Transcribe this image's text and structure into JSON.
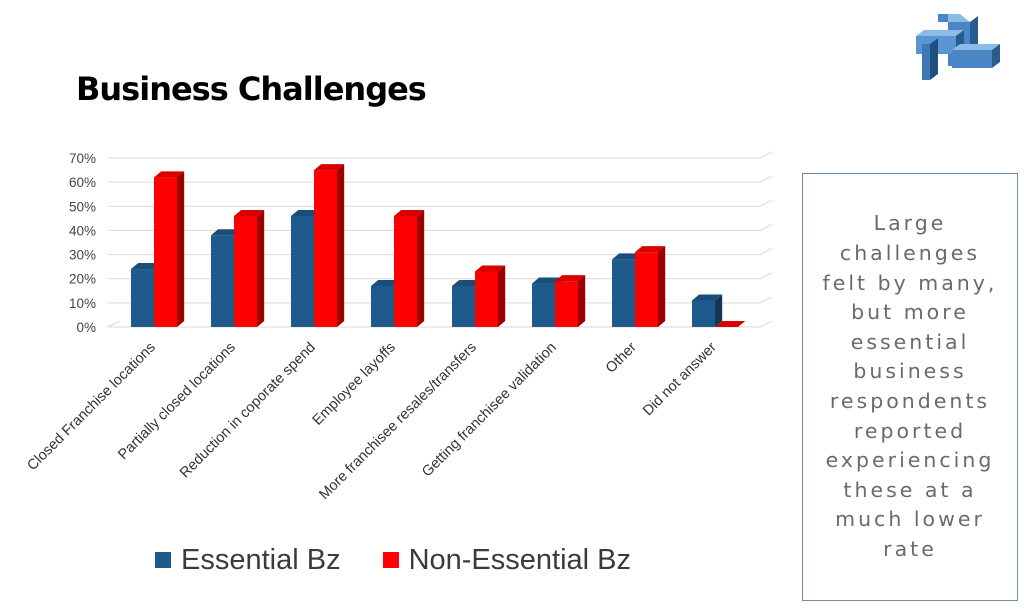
{
  "slide": {
    "title": "Business Challenges",
    "callout": "Large challenges felt by many, but more essential business respondents reported experiencing these at a much lower rate"
  },
  "logo": {
    "icon": "interlocked-cubes-logo",
    "colors": [
      "#2a5b8f",
      "#4a86c6",
      "#8dbbe8"
    ]
  },
  "colors": {
    "essential": "#1f5a8c",
    "non_essential": "#ff0000"
  },
  "chart_data": {
    "type": "bar",
    "title": "",
    "xlabel": "",
    "ylabel": "",
    "categories": [
      "Closed Franchise locations",
      "Partially closed locations",
      "Reduction in coporate spend",
      "Employee layoffs",
      "More franchisee resales/transfers",
      "Getting franchisee validation",
      "Other",
      "Did not answer"
    ],
    "series": [
      {
        "name": "Essential Bz",
        "color": "#1f5a8c",
        "values": [
          24,
          38,
          46,
          17,
          17,
          18,
          28,
          11
        ]
      },
      {
        "name": "Non-Essential Bz",
        "color": "#ff0000",
        "values": [
          62,
          46,
          65,
          46,
          23,
          19,
          31,
          0
        ]
      }
    ],
    "ylim": [
      0,
      70
    ],
    "yticks": [
      "0%",
      "10%",
      "20%",
      "30%",
      "40%",
      "50%",
      "60%",
      "70%"
    ],
    "grid": true,
    "legend_position": "bottom",
    "style": "3d-clustered-column"
  }
}
